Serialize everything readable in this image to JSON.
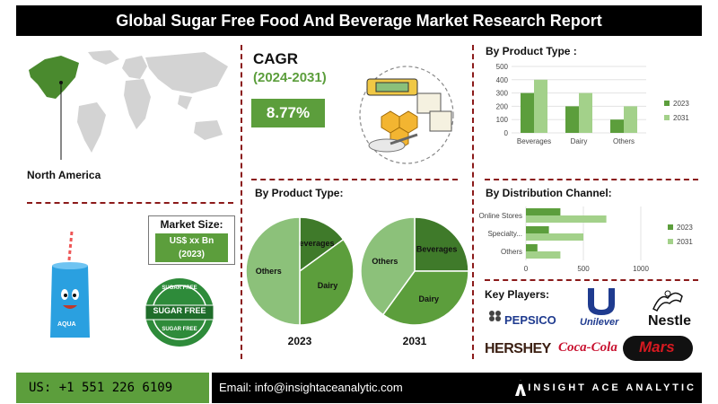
{
  "header": {
    "title": "Global Sugar Free Food And Beverage Market Research Report"
  },
  "region": {
    "label": "North America"
  },
  "cagr": {
    "title": "CAGR",
    "period": "(2024-2031)",
    "value": "8.77%"
  },
  "market_size": {
    "title": "Market Size:",
    "value_line1": "US$ xx Bn",
    "value_line2": "(2023)"
  },
  "badge": {
    "top_text": "SUGAR FREE",
    "center_text": "SUGAR FREE",
    "bottom_text": "SUGAR FREE"
  },
  "can": {
    "label": "AQUA"
  },
  "sections": {
    "product_type_pies": "By Product Type:",
    "product_type_bars": "By Product Type :",
    "distribution": "By Distribution Channel:",
    "key_players": "Key Players:"
  },
  "chart_data": [
    {
      "type": "bar",
      "title": "By Product Type :",
      "categories": [
        "Beverages",
        "Dairy",
        "Others"
      ],
      "series": [
        {
          "name": "2023",
          "values": [
            300,
            200,
            100
          ],
          "color": "#5c9e3c"
        },
        {
          "name": "2031",
          "values": [
            400,
            300,
            200
          ],
          "color": "#a3d18a"
        }
      ],
      "ylim": [
        0,
        500
      ],
      "yticks": [
        "0",
        "100",
        "200",
        "300",
        "400",
        "500"
      ],
      "grid": true,
      "legend": "right"
    },
    {
      "type": "bar",
      "orientation": "horizontal",
      "title": "By Distribution Channel:",
      "categories": [
        "Online Stores",
        "Specialty...",
        "Others"
      ],
      "series": [
        {
          "name": "2023",
          "values": [
            300,
            200,
            100
          ],
          "color": "#5c9e3c"
        },
        {
          "name": "2031",
          "values": [
            700,
            500,
            300
          ],
          "color": "#a3d18a"
        }
      ],
      "xlim": [
        0,
        1000
      ],
      "xticks": [
        "0",
        "500",
        "1000"
      ],
      "grid": true,
      "legend": "right"
    },
    {
      "type": "pie",
      "label": "2023",
      "slices": [
        {
          "name": "Beverages",
          "value": 15,
          "color": "#3f7a2a"
        },
        {
          "name": "Dairy",
          "value": 35,
          "color": "#5c9e3c"
        },
        {
          "name": "Others",
          "value": 50,
          "color": "#8cc17a"
        }
      ]
    },
    {
      "type": "pie",
      "label": "2031",
      "slices": [
        {
          "name": "Beverages",
          "value": 25,
          "color": "#3f7a2a"
        },
        {
          "name": "Dairy",
          "value": 35,
          "color": "#5c9e3c"
        },
        {
          "name": "Others",
          "value": 40,
          "color": "#8cc17a"
        }
      ]
    }
  ],
  "key_players": [
    "PEPSICO",
    "Unilever",
    "Nestle",
    "HERSHEY",
    "Coca-Cola",
    "Mars"
  ],
  "footer": {
    "phone": "US: +1 551 226 6109",
    "email": "Email: info@insightaceanalytic.com",
    "brand": "INSIGHT ACE ANALYTIC"
  },
  "colors": {
    "accent": "#5c9e3c",
    "light_accent": "#a3d18a",
    "dark_accent": "#3f7a2a",
    "divider": "#8b1a1a"
  }
}
